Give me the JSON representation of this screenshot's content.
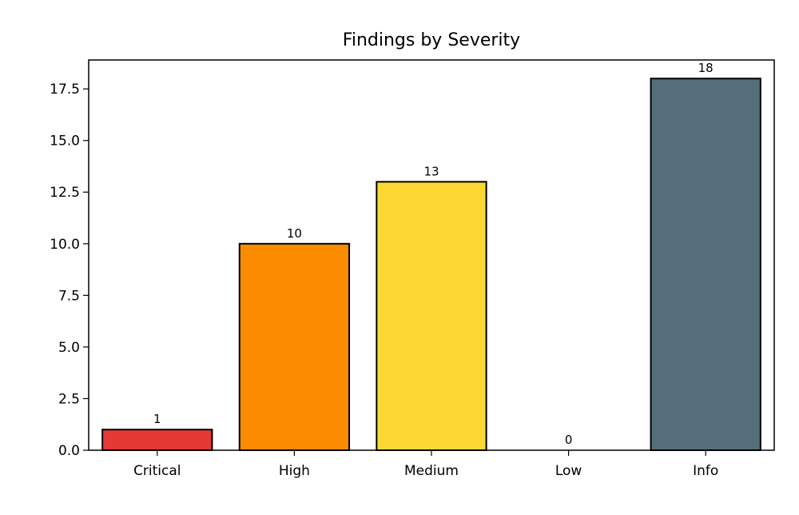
{
  "chart_data": {
    "type": "bar",
    "title": "Findings by Severity",
    "xlabel": "",
    "ylabel": "",
    "categories": [
      "Critical",
      "High",
      "Medium",
      "Low",
      "Info"
    ],
    "values": [
      1,
      10,
      13,
      0,
      18
    ],
    "value_labels": [
      "1",
      "10",
      "13",
      "0",
      "18"
    ],
    "colors": [
      "#e53935",
      "#fb8c00",
      "#fdd835",
      "#43a047",
      "#546e7a"
    ],
    "edge_color": "#000000",
    "ylim": [
      0,
      18.9
    ],
    "yticks": [
      0,
      2.5,
      5,
      7.5,
      10,
      12.5,
      15,
      17.5
    ],
    "ytick_labels": [
      "0.0",
      "2.5",
      "5.0",
      "7.5",
      "10.0",
      "12.5",
      "15.0",
      "17.5"
    ],
    "grid": false,
    "legend": "none"
  }
}
